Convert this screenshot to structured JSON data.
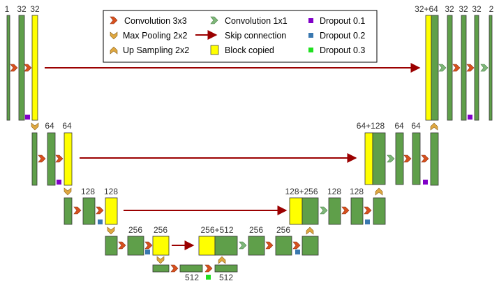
{
  "colors": {
    "feature_map": "#5f9f4a",
    "copied": "#ffff00",
    "conv3": "#d8501e",
    "conv1": "#7fb77a",
    "pool": "#e0a840",
    "skip": "#9b0000",
    "dropout_01": "#8000c8",
    "dropout_02": "#3a78b0",
    "dropout_03": "#20e020"
  },
  "legend": {
    "conv3": "Convolution  3x3",
    "maxpool": "Max Pooling 2x2",
    "upsample": "Up Sampling 2x2",
    "conv1": "Convolution  1x1",
    "skip": "Skip connection",
    "copied": "Block copied",
    "dropout1": "Dropout  0.1",
    "dropout2": "Dropout  0.2",
    "dropout3": "Dropout  0.3"
  },
  "labels": {
    "enc1": [
      "1",
      "32",
      "32"
    ],
    "enc2": [
      "64",
      "64"
    ],
    "enc3": [
      "128",
      "128"
    ],
    "enc4": [
      "256",
      "256"
    ],
    "bottleneck": [
      "512",
      "512"
    ],
    "dec4": [
      "256+512",
      "256",
      "256"
    ],
    "dec3": [
      "128+256",
      "128",
      "128"
    ],
    "dec2": [
      "64+128",
      "64",
      "64"
    ],
    "dec1": [
      "32+64",
      "32",
      "32",
      "32",
      "2"
    ]
  }
}
